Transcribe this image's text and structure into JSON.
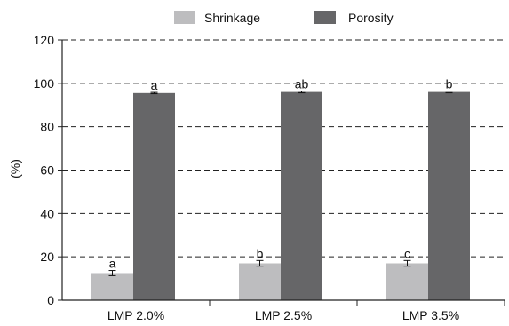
{
  "chart_data": {
    "type": "bar",
    "categories": [
      "LMP 2.0%",
      "LMP 2.5%",
      "LMP 3.5%"
    ],
    "series": [
      {
        "name": "Shrinkage",
        "color": "#bdbdbf",
        "values": [
          12.5,
          17,
          17
        ],
        "errors": [
          1.2,
          1.3,
          1.3
        ],
        "labels": [
          "a",
          "b",
          "c"
        ]
      },
      {
        "name": "Porosity",
        "color": "#666668",
        "values": [
          95.5,
          96,
          96
        ],
        "errors": [
          0.3,
          0.4,
          0.4
        ],
        "labels": [
          "a",
          "ab",
          "b"
        ]
      }
    ],
    "ylabel": "(%)",
    "ylim": [
      0,
      120
    ],
    "yticks": [
      0,
      20,
      40,
      60,
      80,
      100,
      120
    ],
    "grid": "dashed horizontal",
    "legend": "top"
  }
}
